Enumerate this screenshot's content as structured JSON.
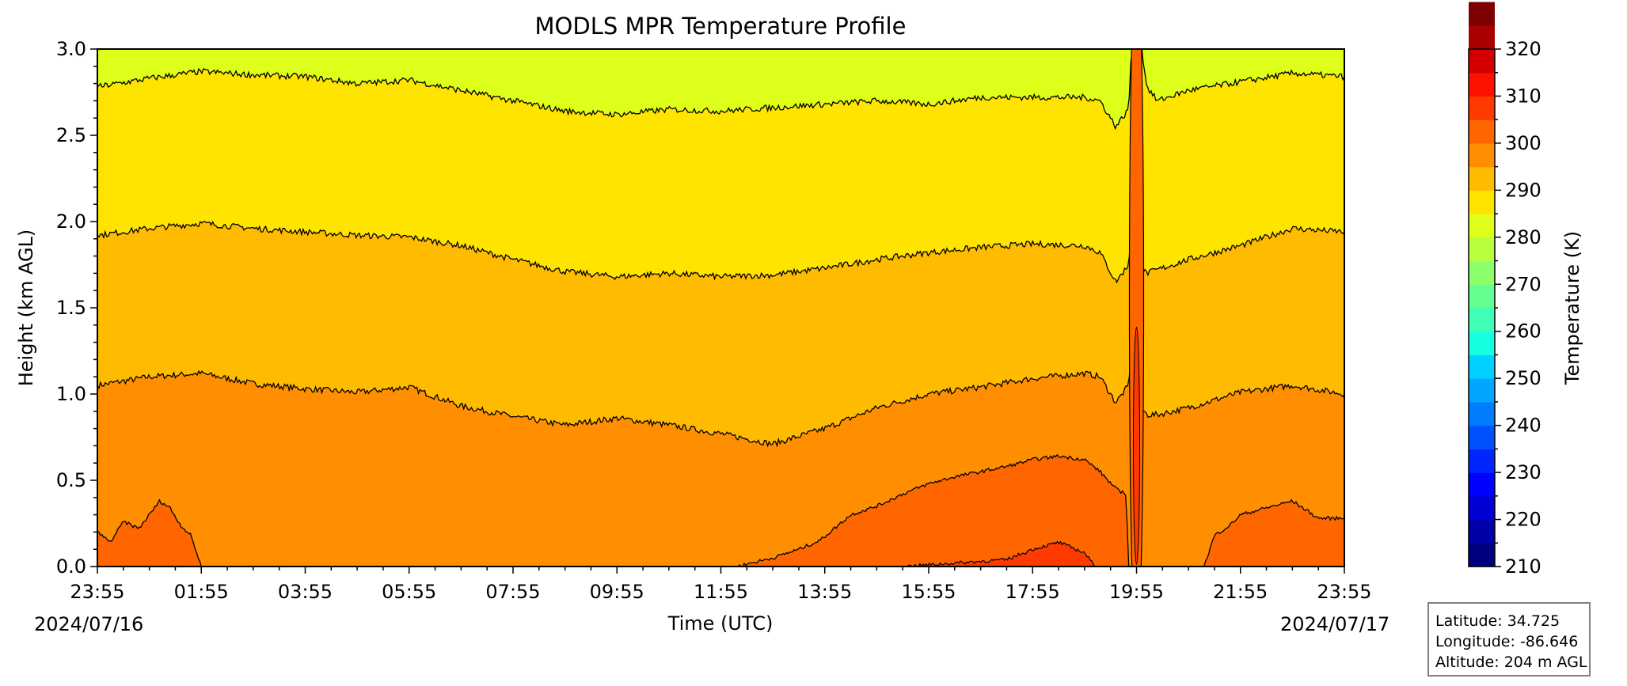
{
  "chart_data": {
    "type": "heatmap",
    "title": "MODLS MPR Temperature Profile",
    "xlabel": "Time (UTC)",
    "ylabel": "Height (km AGL)",
    "x_tick_labels": [
      "23:55",
      "01:55",
      "03:55",
      "05:55",
      "07:55",
      "09:55",
      "11:55",
      "13:55",
      "15:55",
      "17:55",
      "19:55",
      "21:55",
      "23:55"
    ],
    "x_hours_from_start": [
      0,
      2,
      4,
      6,
      8,
      10,
      12,
      14,
      16,
      18,
      20,
      22,
      24
    ],
    "start_date": "2024/07/16",
    "end_date": "2024/07/17",
    "ylim": [
      0,
      3.0
    ],
    "y_ticks": [
      0.0,
      0.5,
      1.0,
      1.5,
      2.0,
      2.5,
      3.0
    ],
    "y_tick_labels": [
      "0.0",
      "0.5",
      "1.0",
      "1.5",
      "2.0",
      "2.5",
      "3.0"
    ],
    "colorbar": {
      "label": "Temperature (K)",
      "range": [
        210,
        320
      ],
      "step": 5,
      "tick_values": [
        210,
        220,
        230,
        240,
        250,
        260,
        270,
        280,
        290,
        300,
        310,
        320
      ],
      "colors": [
        "#00007f",
        "#0000a8",
        "#0000d4",
        "#0000ff",
        "#0026ff",
        "#0052ff",
        "#007cff",
        "#00a6ff",
        "#00d0ff",
        "#16ffe1",
        "#3fffb7",
        "#65ff91",
        "#8cff6a",
        "#b7ff3f",
        "#ddff19",
        "#ffe400",
        "#ffbb00",
        "#ff8f00",
        "#ff6600",
        "#ff3a00",
        "#fd1100",
        "#d40000",
        "#a80000",
        "#7f0000"
      ]
    },
    "contour_levels_K": [
      285,
      290,
      295,
      300,
      305
    ],
    "contour_heights": {
      "hours": [
        0,
        1,
        2,
        3,
        4,
        5,
        6,
        7,
        8,
        9,
        10,
        11,
        12,
        13,
        14,
        15,
        16,
        17,
        18,
        19,
        19.3,
        19.6,
        19.85,
        19.9,
        20.0,
        20.1,
        20.2,
        20.4,
        21,
        22,
        23,
        24
      ],
      "k285": [
        2.78,
        2.83,
        2.87,
        2.85,
        2.84,
        2.8,
        2.82,
        2.76,
        2.7,
        2.64,
        2.62,
        2.65,
        2.64,
        2.66,
        2.68,
        2.7,
        2.68,
        2.72,
        2.72,
        2.72,
        2.7,
        2.55,
        2.65,
        3.0,
        3.0,
        3.0,
        2.78,
        2.7,
        2.76,
        2.81,
        2.86,
        2.84
      ],
      "k290": [
        1.92,
        1.96,
        1.99,
        1.96,
        1.94,
        1.92,
        1.91,
        1.86,
        1.78,
        1.71,
        1.68,
        1.7,
        1.68,
        1.69,
        1.73,
        1.78,
        1.82,
        1.85,
        1.87,
        1.86,
        1.82,
        1.65,
        1.75,
        2.0,
        2.05,
        1.72,
        1.7,
        1.72,
        1.78,
        1.86,
        1.96,
        1.94
      ],
      "k295": [
        1.05,
        1.1,
        1.12,
        1.06,
        1.03,
        1.01,
        1.04,
        0.93,
        0.87,
        0.82,
        0.86,
        0.82,
        0.77,
        0.71,
        0.8,
        0.92,
        1.0,
        1.04,
        1.09,
        1.12,
        1.1,
        0.95,
        1.05,
        1.25,
        1.05,
        0.92,
        0.88,
        0.88,
        0.92,
        1.01,
        1.05,
        1.0
      ],
      "k300": {
        "left": {
          "hours": [
            0,
            0.25,
            0.5,
            0.8,
            1.0,
            1.2,
            1.4,
            1.6,
            1.8,
            2.0
          ],
          "heights": [
            0.2,
            0.14,
            0.26,
            0.22,
            0.3,
            0.38,
            0.34,
            0.24,
            0.18,
            0.0
          ]
        },
        "middle": {
          "hours": [
            12.3,
            13.0,
            13.5,
            13.9,
            14.5,
            15.0,
            15.5,
            16.0,
            16.5,
            17.0,
            17.5,
            18.0,
            18.5,
            19.0,
            19.3,
            19.6,
            19.8,
            19.85
          ],
          "heights": [
            0.0,
            0.05,
            0.1,
            0.15,
            0.3,
            0.35,
            0.42,
            0.48,
            0.52,
            0.55,
            0.58,
            0.62,
            0.64,
            0.62,
            0.55,
            0.45,
            0.42,
            0.0
          ]
        },
        "right": {
          "hours": [
            21.3,
            21.5,
            21.8,
            22.0,
            22.5,
            23.0,
            23.5,
            24.0
          ],
          "heights": [
            0.0,
            0.18,
            0.24,
            0.3,
            0.34,
            0.38,
            0.28,
            0.28
          ]
        }
      },
      "k305": {
        "hours": [
          15.5,
          16.5,
          17.5,
          18.0,
          18.5,
          19.0,
          19.2
        ],
        "heights": [
          0.0,
          0.02,
          0.04,
          0.1,
          0.14,
          0.08,
          0.0
        ]
      }
    }
  },
  "info_box": {
    "latitude": "Latitude: 34.725",
    "longitude": "Longitude: -86.646",
    "altitude": "Altitude: 204 m AGL"
  }
}
